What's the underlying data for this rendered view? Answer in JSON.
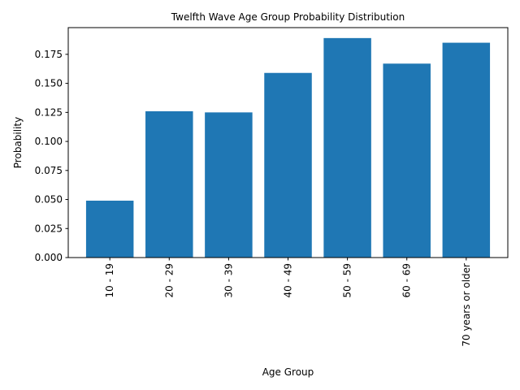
{
  "chart_data": {
    "type": "bar",
    "title": "Twelfth Wave Age Group Probability Distribution",
    "xlabel": "Age Group",
    "ylabel": "Probability",
    "categories": [
      "10 - 19",
      "20 - 29",
      "30 - 39",
      "40 - 49",
      "50 - 59",
      "60 - 69",
      "70 years or older"
    ],
    "values": [
      0.049,
      0.126,
      0.125,
      0.159,
      0.189,
      0.167,
      0.185
    ],
    "ylim": [
      0,
      0.198
    ],
    "yticks": [
      0.0,
      0.025,
      0.05,
      0.075,
      0.1,
      0.125,
      0.15,
      0.175
    ],
    "ytick_labels": [
      "0.000",
      "0.025",
      "0.050",
      "0.075",
      "0.100",
      "0.125",
      "0.150",
      "0.175"
    ],
    "bar_color": "#1f77b4",
    "grid": false,
    "legend": false
  }
}
